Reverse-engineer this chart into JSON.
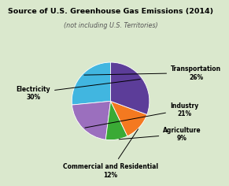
{
  "title": "Source of U.S. Greenhouse Gas Emissions (2014)",
  "subtitle": "(not including U.S. Territories)",
  "slices": [
    {
      "label": "Transportation\n26%",
      "value": 26,
      "color": "#41b6e0"
    },
    {
      "label": "Industry\n21%",
      "value": 21,
      "color": "#9b6fbe"
    },
    {
      "label": "Agriculture\n9%",
      "value": 9,
      "color": "#3aaa35"
    },
    {
      "label": "Commercial and Residential\n12%",
      "value": 12,
      "color": "#f47920"
    },
    {
      "label": "Electricity\n30%",
      "value": 30,
      "color": "#5c3d99"
    }
  ],
  "background_color": "#dae8cd",
  "title_fontsize": 6.8,
  "subtitle_fontsize": 5.8,
  "label_fontsize": 5.5,
  "startangle": 90,
  "label_positions": [
    [
      1.32,
      0.62,
      "left",
      "center"
    ],
    [
      1.3,
      -0.18,
      "left",
      "center"
    ],
    [
      1.15,
      -0.72,
      "left",
      "center"
    ],
    [
      0.0,
      -1.35,
      "center",
      "top"
    ],
    [
      -1.32,
      0.18,
      "right",
      "center"
    ]
  ]
}
